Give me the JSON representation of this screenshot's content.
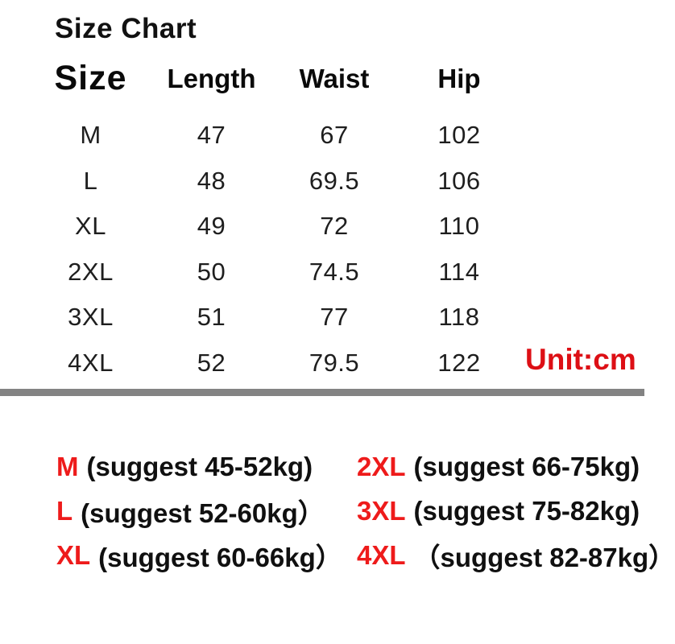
{
  "title": "Size Chart",
  "table": {
    "headers": [
      "Size",
      "Length",
      "Waist",
      "Hip"
    ],
    "rows": [
      {
        "size": "M",
        "length": "47",
        "waist": "67",
        "hip": "102"
      },
      {
        "size": "L",
        "length": "48",
        "waist": "69.5",
        "hip": "106"
      },
      {
        "size": "XL",
        "length": "49",
        "waist": "72",
        "hip": "110"
      },
      {
        "size": "2XL",
        "length": "50",
        "waist": "74.5",
        "hip": "114"
      },
      {
        "size": "3XL",
        "length": "51",
        "waist": "77",
        "hip": "118"
      },
      {
        "size": "4XL",
        "length": "52",
        "waist": "79.5",
        "hip": "122"
      }
    ],
    "unit_label": "Unit:cm"
  },
  "suggestions": {
    "left": [
      {
        "size": "M",
        "note": "(suggest 45-52kg)"
      },
      {
        "size": "L",
        "note": "(suggest 52-60kg）"
      },
      {
        "size": "XL",
        "note": "(suggest 60-66kg）"
      }
    ],
    "right": [
      {
        "size": "2XL",
        "note": "(suggest 66-75kg)"
      },
      {
        "size": "3XL",
        "note": "(suggest 75-82kg)"
      },
      {
        "size": "4XL",
        "note": "（suggest 82-87kg）"
      }
    ]
  },
  "colors": {
    "background": "#ffffff",
    "text_black": "#1a1a1a",
    "accent_red": "#dd0f15",
    "suggest_red": "#ee1b1b",
    "divider_gray": "#838383"
  }
}
